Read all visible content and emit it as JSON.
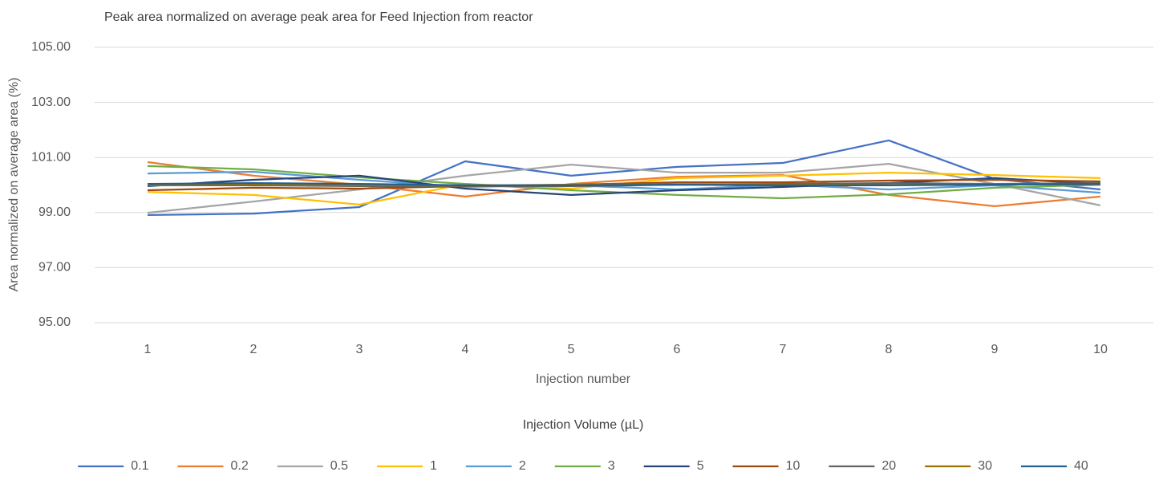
{
  "chart_data": {
    "type": "line",
    "title": "Peak area normalized on average peak area for Feed Injection from reactor",
    "x_label": "Injection number",
    "y_label": "Area normalized on average area (%)",
    "legend_title": "Injection Volume (µL)",
    "categories": [
      "1",
      "2",
      "3",
      "4",
      "5",
      "6",
      "7",
      "8",
      "9",
      "10"
    ],
    "ylim": [
      95,
      105
    ],
    "yticks": [
      {
        "value": 95,
        "label": "95.00"
      },
      {
        "value": 97,
        "label": "97.00"
      },
      {
        "value": 99,
        "label": "99.00"
      },
      {
        "value": 101,
        "label": "101.00"
      },
      {
        "value": 103,
        "label": "103.00"
      },
      {
        "value": 105,
        "label": "105.00"
      }
    ],
    "grid": true,
    "legend": "bottom",
    "series": [
      {
        "name": "0.1",
        "color": "#4472c4",
        "values": [
          98.91,
          98.96,
          99.2,
          100.86,
          100.34,
          100.66,
          100.8,
          101.62,
          100.22,
          99.84
        ]
      },
      {
        "name": "0.2",
        "color": "#ed7d31",
        "values": [
          100.83,
          100.34,
          100.01,
          99.58,
          100.04,
          100.3,
          100.36,
          99.64,
          99.23,
          99.58
        ]
      },
      {
        "name": "0.5",
        "color": "#a5a5a5",
        "values": [
          98.99,
          99.4,
          99.84,
          100.34,
          100.74,
          100.45,
          100.45,
          100.77,
          100.04,
          99.26
        ]
      },
      {
        "name": "1",
        "color": "#ffc000",
        "values": [
          99.75,
          99.64,
          99.29,
          100.04,
          99.87,
          100.25,
          100.34,
          100.45,
          100.36,
          100.25
        ]
      },
      {
        "name": "2",
        "color": "#5b9bd5",
        "values": [
          100.42,
          100.48,
          100.19,
          99.93,
          99.99,
          99.84,
          100.01,
          99.84,
          99.99,
          99.72
        ]
      },
      {
        "name": "3",
        "color": "#70ad47",
        "values": [
          100.69,
          100.57,
          100.28,
          100.04,
          99.81,
          99.64,
          99.52,
          99.66,
          99.9,
          100.01
        ]
      },
      {
        "name": "5",
        "color": "#264478",
        "values": [
          99.96,
          100.19,
          100.34,
          99.87,
          99.64,
          99.81,
          99.93,
          100.07,
          100.25,
          100.04
        ]
      },
      {
        "name": "10",
        "color": "#9e480e",
        "values": [
          99.81,
          99.9,
          99.87,
          99.96,
          100.01,
          100.1,
          100.1,
          100.16,
          100.19,
          100.13
        ]
      },
      {
        "name": "20",
        "color": "#636363",
        "values": [
          99.99,
          99.99,
          99.96,
          99.96,
          99.96,
          100.01,
          100.04,
          100.07,
          100.04,
          100.07
        ]
      },
      {
        "name": "30",
        "color": "#997300",
        "values": [
          100.0,
          100.02,
          99.99,
          99.98,
          100.01,
          100.03,
          100.02,
          100.0,
          100.03,
          100.01
        ]
      },
      {
        "name": "40",
        "color": "#255e91",
        "values": [
          100.04,
          100.07,
          100.04,
          99.99,
          99.99,
          100.01,
          99.99,
          99.99,
          100.01,
          100.04
        ]
      }
    ]
  }
}
